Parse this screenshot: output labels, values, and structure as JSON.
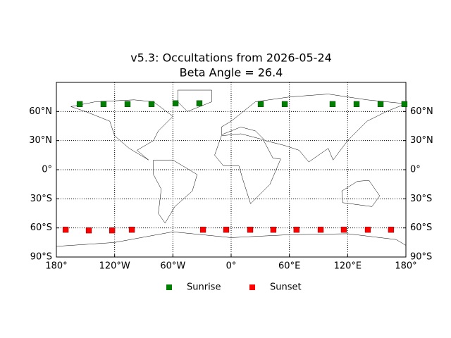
{
  "chart_data": {
    "type": "scatter",
    "title": "v5.3: Occultations from 2026-05-24",
    "subtitle": "Beta Angle = 26.4",
    "xlim": [
      -180,
      180
    ],
    "ylim": [
      -90,
      90
    ],
    "xticks": [
      {
        "value": -180,
        "label": "180°"
      },
      {
        "value": -120,
        "label": "120°W"
      },
      {
        "value": -60,
        "label": "60°W"
      },
      {
        "value": 0,
        "label": "0°"
      },
      {
        "value": 60,
        "label": "60°E"
      },
      {
        "value": 120,
        "label": "120°E"
      },
      {
        "value": 180,
        "label": "180°"
      }
    ],
    "yticks": [
      {
        "value": -90,
        "label": "90°S"
      },
      {
        "value": -60,
        "label": "60°S"
      },
      {
        "value": -30,
        "label": "30°S"
      },
      {
        "value": 0,
        "label": "0°"
      },
      {
        "value": 30,
        "label": "30°N"
      },
      {
        "value": 60,
        "label": "60°N"
      }
    ],
    "grid": true,
    "legend": "lower center",
    "series": [
      {
        "name": "Sunrise",
        "color": "#008000",
        "x": [
          -156,
          -131.4,
          -106.7,
          -82,
          -57.3,
          -32.7,
          30.5,
          55.2,
          104.5,
          129.2,
          153.9,
          178.5
        ],
        "values": [
          67.6,
          67.6,
          67.6,
          67.6,
          68.4,
          68.4,
          67.6,
          67.6,
          67.6,
          67.6,
          67.6,
          67.6
        ]
      },
      {
        "name": "Sunset",
        "color": "#ff0000",
        "x": [
          -170.5,
          -146.6,
          -122.6,
          -102.3,
          -29,
          -5.1,
          19.6,
          43.5,
          67.4,
          92.2,
          116.1,
          140.8,
          164.7
        ],
        "values": [
          -61.8,
          -62.5,
          -62.5,
          -61.8,
          -61.8,
          -61.8,
          -61.8,
          -61.8,
          -61.8,
          -61.8,
          -61.8,
          -61.8,
          -61.8
        ]
      }
    ]
  }
}
